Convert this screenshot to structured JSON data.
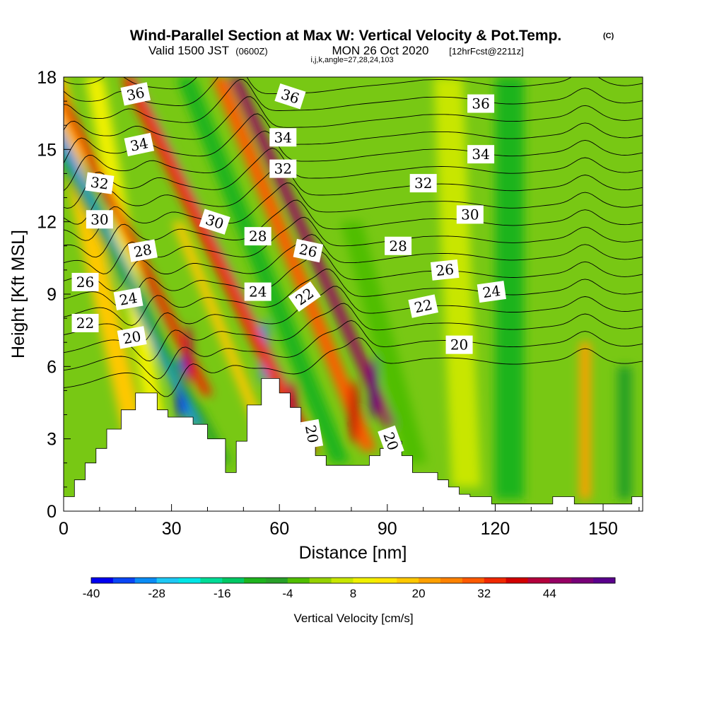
{
  "header": {
    "title": "Wind-Parallel Section at Max W: Vertical Velocity & Pot.Temp.",
    "copyright": "(C)",
    "valid_prefix": "Valid 1500 JST",
    "valid_utc": "(0600Z)",
    "valid_date": "MON 26 Oct 2020",
    "forecast": "[12hrFcst@2211z]",
    "indices": "i,j,k,angle=27,28,24,103"
  },
  "chart_data": {
    "type": "heatmap",
    "title": "Wind-Parallel Section at Max W: Vertical Velocity & Pot.Temp.",
    "xlabel": "Distance [nm]",
    "ylabel": "Height [Kft MSL]",
    "xlim": [
      0,
      161
    ],
    "ylim": [
      0,
      18
    ],
    "x_ticks": [
      0,
      30,
      60,
      90,
      120,
      150
    ],
    "y_ticks": [
      0,
      3,
      6,
      9,
      12,
      15,
      18
    ],
    "grid": false,
    "colorbar": {
      "label": "Vertical Velocity [cm/s]",
      "placement": "bottom",
      "tick_labels": [
        "-40",
        "-28",
        "-16",
        "-4",
        "8",
        "20",
        "32",
        "44"
      ],
      "colors": [
        "#0000f0",
        "#0a46f5",
        "#0a8cf5",
        "#1ec8f5",
        "#00e6e6",
        "#00dc96",
        "#00c864",
        "#1eb41e",
        "#28a028",
        "#50be00",
        "#96d200",
        "#c8e600",
        "#f0f000",
        "#ffe600",
        "#ffc800",
        "#ffa000",
        "#ff8200",
        "#ff5a00",
        "#f02800",
        "#d20000",
        "#b4003c",
        "#960064",
        "#780078",
        "#5a008c"
      ]
    },
    "velocity_plumes": [
      {
        "x": 20,
        "y_base": 3,
        "y_top": 18,
        "lean": -0.25,
        "width": 6,
        "value": 16
      },
      {
        "x": 29,
        "y_base": 1,
        "y_top": 18,
        "lean": -0.2,
        "width": 5,
        "value": 8
      },
      {
        "x": 38,
        "y_base": 3.5,
        "y_top": 18,
        "lean": -0.55,
        "width": 4,
        "value": -32
      },
      {
        "x": 40,
        "y_base": 4.8,
        "y_top": 18,
        "lean": -0.55,
        "width": 3,
        "value": 34
      },
      {
        "x": 45,
        "y_base": 2,
        "y_top": 18,
        "lean": -0.6,
        "width": 3,
        "value": -8
      },
      {
        "x": 56,
        "y_base": 3,
        "y_top": 12,
        "lean": -0.45,
        "width": 3,
        "value": 16
      },
      {
        "x": 61,
        "y_base": 5,
        "y_top": 18,
        "lean": -0.55,
        "width": 4,
        "value": -26
      },
      {
        "x": 69,
        "y_base": 2.5,
        "y_top": 18,
        "lean": -0.55,
        "width": 4,
        "value": 34
      },
      {
        "x": 77,
        "y_base": 2,
        "y_top": 18,
        "lean": -0.45,
        "width": 5,
        "value": -10
      },
      {
        "x": 85,
        "y_base": 2.5,
        "y_top": 18,
        "lean": -0.45,
        "width": 4,
        "value": 30
      },
      {
        "x": 91,
        "y_base": 3.5,
        "y_top": 18,
        "lean": -0.5,
        "width": 3,
        "value": 46
      },
      {
        "x": 98,
        "y_base": 2,
        "y_top": 12,
        "lean": -0.3,
        "width": 6,
        "value": -4
      },
      {
        "x": 112,
        "y_base": 1,
        "y_top": 18,
        "lean": -0.05,
        "width": 8,
        "value": 4
      },
      {
        "x": 124,
        "y_base": 0.5,
        "y_top": 18,
        "lean": 0.0,
        "width": 8,
        "value": -10
      },
      {
        "x": 145,
        "y_base": 0.5,
        "y_top": 7,
        "lean": 0.0,
        "width": 3,
        "value": 20
      },
      {
        "x": 156,
        "y_base": 0.5,
        "y_top": 6,
        "lean": 0.0,
        "width": 4,
        "value": -8
      }
    ],
    "theta_contour_levels": [
      20,
      21,
      22,
      23,
      24,
      25,
      26,
      27,
      28,
      29,
      30,
      31,
      32,
      33,
      34,
      35,
      36,
      37
    ],
    "contour_labels": [
      {
        "value": "36",
        "x": 20,
        "y": 17.3,
        "angle": -12
      },
      {
        "value": "36",
        "x": 63,
        "y": 17.2,
        "angle": 18
      },
      {
        "value": "36",
        "x": 116,
        "y": 16.9,
        "angle": 0
      },
      {
        "value": "34",
        "x": 21,
        "y": 15.2,
        "angle": -12
      },
      {
        "value": "34",
        "x": 61,
        "y": 15.5,
        "angle": 0
      },
      {
        "value": "34",
        "x": 116,
        "y": 14.8,
        "angle": 0
      },
      {
        "value": "32",
        "x": 10,
        "y": 13.6,
        "angle": 8
      },
      {
        "value": "32",
        "x": 61,
        "y": 14.2,
        "angle": 0
      },
      {
        "value": "32",
        "x": 100,
        "y": 13.6,
        "angle": 0
      },
      {
        "value": "30",
        "x": 10,
        "y": 12.1,
        "angle": 0
      },
      {
        "value": "30",
        "x": 42,
        "y": 12.0,
        "angle": 18
      },
      {
        "value": "30",
        "x": 113,
        "y": 12.3,
        "angle": 0
      },
      {
        "value": "28",
        "x": 22,
        "y": 10.8,
        "angle": -10
      },
      {
        "value": "28",
        "x": 54,
        "y": 11.4,
        "angle": 0
      },
      {
        "value": "28",
        "x": 93,
        "y": 11.0,
        "angle": 0
      },
      {
        "value": "26",
        "x": 6,
        "y": 9.5,
        "angle": 0
      },
      {
        "value": "26",
        "x": 68,
        "y": 10.8,
        "angle": 12
      },
      {
        "value": "26",
        "x": 106,
        "y": 10.0,
        "angle": -6
      },
      {
        "value": "24",
        "x": 18,
        "y": 8.8,
        "angle": -10
      },
      {
        "value": "24",
        "x": 54,
        "y": 9.1,
        "angle": 0
      },
      {
        "value": "24",
        "x": 119,
        "y": 9.1,
        "angle": -8
      },
      {
        "value": "22",
        "x": 6,
        "y": 7.8,
        "angle": 0
      },
      {
        "value": "22",
        "x": 67,
        "y": 8.9,
        "angle": -35
      },
      {
        "value": "22",
        "x": 100,
        "y": 8.5,
        "angle": -12
      },
      {
        "value": "20",
        "x": 19,
        "y": 7.2,
        "angle": -10
      },
      {
        "value": "20",
        "x": 110,
        "y": 6.9,
        "angle": 0
      },
      {
        "value": "20",
        "x": 69,
        "y": 3.2,
        "angle": 80
      },
      {
        "value": "20",
        "x": 91,
        "y": 2.9,
        "angle": 70
      }
    ],
    "terrain": [
      [
        0,
        0.6
      ],
      [
        3,
        1.3
      ],
      [
        6,
        2.0
      ],
      [
        9,
        2.6
      ],
      [
        12,
        3.4
      ],
      [
        16,
        4.2
      ],
      [
        20,
        4.9
      ],
      [
        26,
        4.2
      ],
      [
        29,
        3.9
      ],
      [
        36,
        3.6
      ],
      [
        40,
        3.0
      ],
      [
        45,
        1.6
      ],
      [
        48,
        2.9
      ],
      [
        51,
        4.4
      ],
      [
        55,
        5.5
      ],
      [
        60,
        4.9
      ],
      [
        63,
        4.3
      ],
      [
        66,
        3.6
      ],
      [
        70,
        2.3
      ],
      [
        73,
        1.9
      ],
      [
        82,
        1.9
      ],
      [
        85,
        2.3
      ],
      [
        88,
        2.6
      ],
      [
        92,
        2.9
      ],
      [
        94,
        2.3
      ],
      [
        97,
        1.6
      ],
      [
        104,
        1.3
      ],
      [
        107,
        1.0
      ],
      [
        110,
        0.7
      ],
      [
        113,
        0.6
      ],
      [
        119,
        0.3
      ],
      [
        130,
        0.3
      ],
      [
        136,
        0.6
      ],
      [
        142,
        0.3
      ],
      [
        153,
        0.3
      ],
      [
        158,
        0.6
      ],
      [
        161,
        0.6
      ]
    ]
  }
}
